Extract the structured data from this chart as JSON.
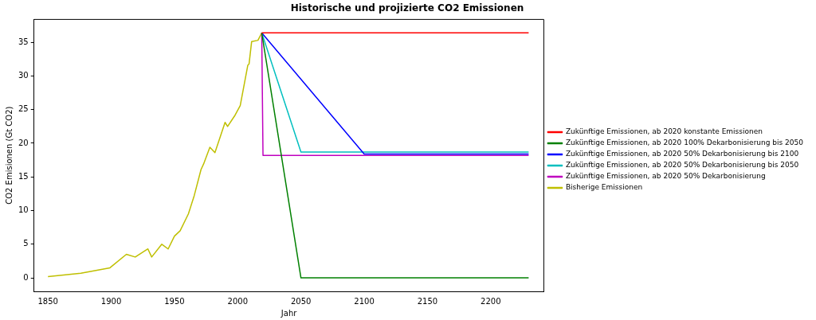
{
  "chart_data": {
    "type": "line",
    "title": "Historische und projizierte CO2 Emissionen",
    "xlabel": "Jahr",
    "ylabel": "CO2 Emisionen (Gt CO2)",
    "xlim": [
      1839,
      2242
    ],
    "ylim": [
      -2,
      38.4
    ],
    "xticks": [
      1850,
      1900,
      1950,
      2000,
      2050,
      2100,
      2150,
      2200
    ],
    "yticks": [
      0,
      5,
      10,
      15,
      20,
      25,
      30,
      35
    ],
    "grid": false,
    "legend": "right",
    "marker": "none",
    "line_style": "solid",
    "series": [
      {
        "name": "Zukünftige Emissionen, ab 2020 konstante Emissionen",
        "color": "#ff0000",
        "x": [
          2019,
          2230
        ],
        "values": [
          36.4,
          36.4
        ]
      },
      {
        "name": "Zukünftige Emissionen, ab 2020 100% Dekarbonisierung bis 2050",
        "color": "#008000",
        "x": [
          2019,
          2050,
          2230
        ],
        "values": [
          36.4,
          0,
          0
        ]
      },
      {
        "name": "Zukünftige Emissionen, ab 2020 50% Dekarbonisierung bis 2100",
        "color": "#0000ff",
        "x": [
          2019,
          2100,
          2230
        ],
        "values": [
          36.4,
          18.4,
          18.4
        ]
      },
      {
        "name": "Zukünftige Emissionen, ab 2020 50% Dekarbonisierung bis 2050",
        "color": "#00bfbf",
        "x": [
          2019,
          2050,
          2230
        ],
        "values": [
          36.4,
          18.7,
          18.7
        ]
      },
      {
        "name": "Zukünftige Emissionen, ab 2020 50% Dekarbonisierung",
        "color": "#bf00bf",
        "x": [
          2019,
          2020,
          2230
        ],
        "values": [
          36.4,
          18.2,
          18.2
        ]
      },
      {
        "name": "Bisherige Emissionen",
        "color": "#bfbf00",
        "x": [
          1850,
          1876,
          1899,
          1912,
          1919,
          1929,
          1932,
          1940,
          1945,
          1950,
          1954.5,
          1961,
          1965.6,
          1971,
          1973,
          1978,
          1982,
          1990,
          1992,
          1998,
          2002,
          2008,
          2009,
          2011,
          2016,
          2019
        ],
        "values": [
          0.2,
          0.7,
          1.5,
          3.5,
          3.1,
          4.3,
          3.1,
          5.0,
          4.3,
          6.2,
          7.0,
          9.5,
          12.2,
          16.1,
          16.9,
          19.4,
          18.6,
          23.1,
          22.5,
          24.2,
          25.6,
          31.6,
          31.8,
          35.1,
          35.3,
          36.4
        ]
      }
    ]
  }
}
